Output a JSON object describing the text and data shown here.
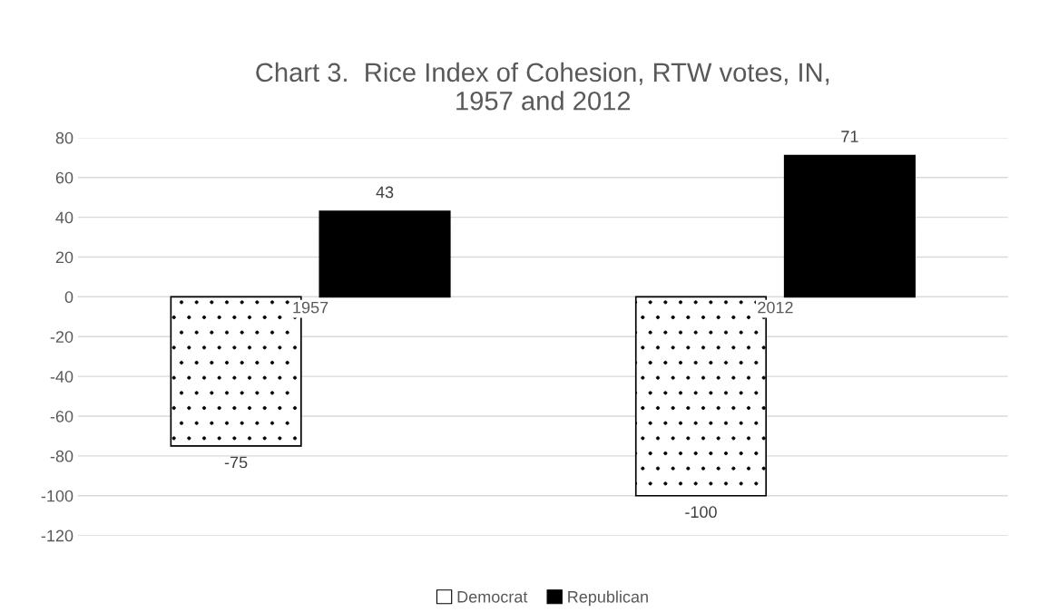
{
  "chart_data": {
    "type": "bar",
    "title": "Chart 3.  Rice Index of Cohesion, RTW votes, IN,\n1957 and 2012",
    "categories": [
      "1957",
      "2012"
    ],
    "series": [
      {
        "name": "Democrat",
        "color": "#ffffff",
        "values": [
          -75,
          -100
        ]
      },
      {
        "name": "Republican",
        "color": "#000000",
        "values": [
          43,
          71
        ]
      }
    ],
    "ylim": [
      -120,
      80
    ],
    "yticks": [
      -120,
      -100,
      -80,
      -60,
      -40,
      -20,
      0,
      20,
      40,
      60,
      80
    ],
    "grid": "y",
    "legend": "bottom",
    "data_labels": true
  }
}
